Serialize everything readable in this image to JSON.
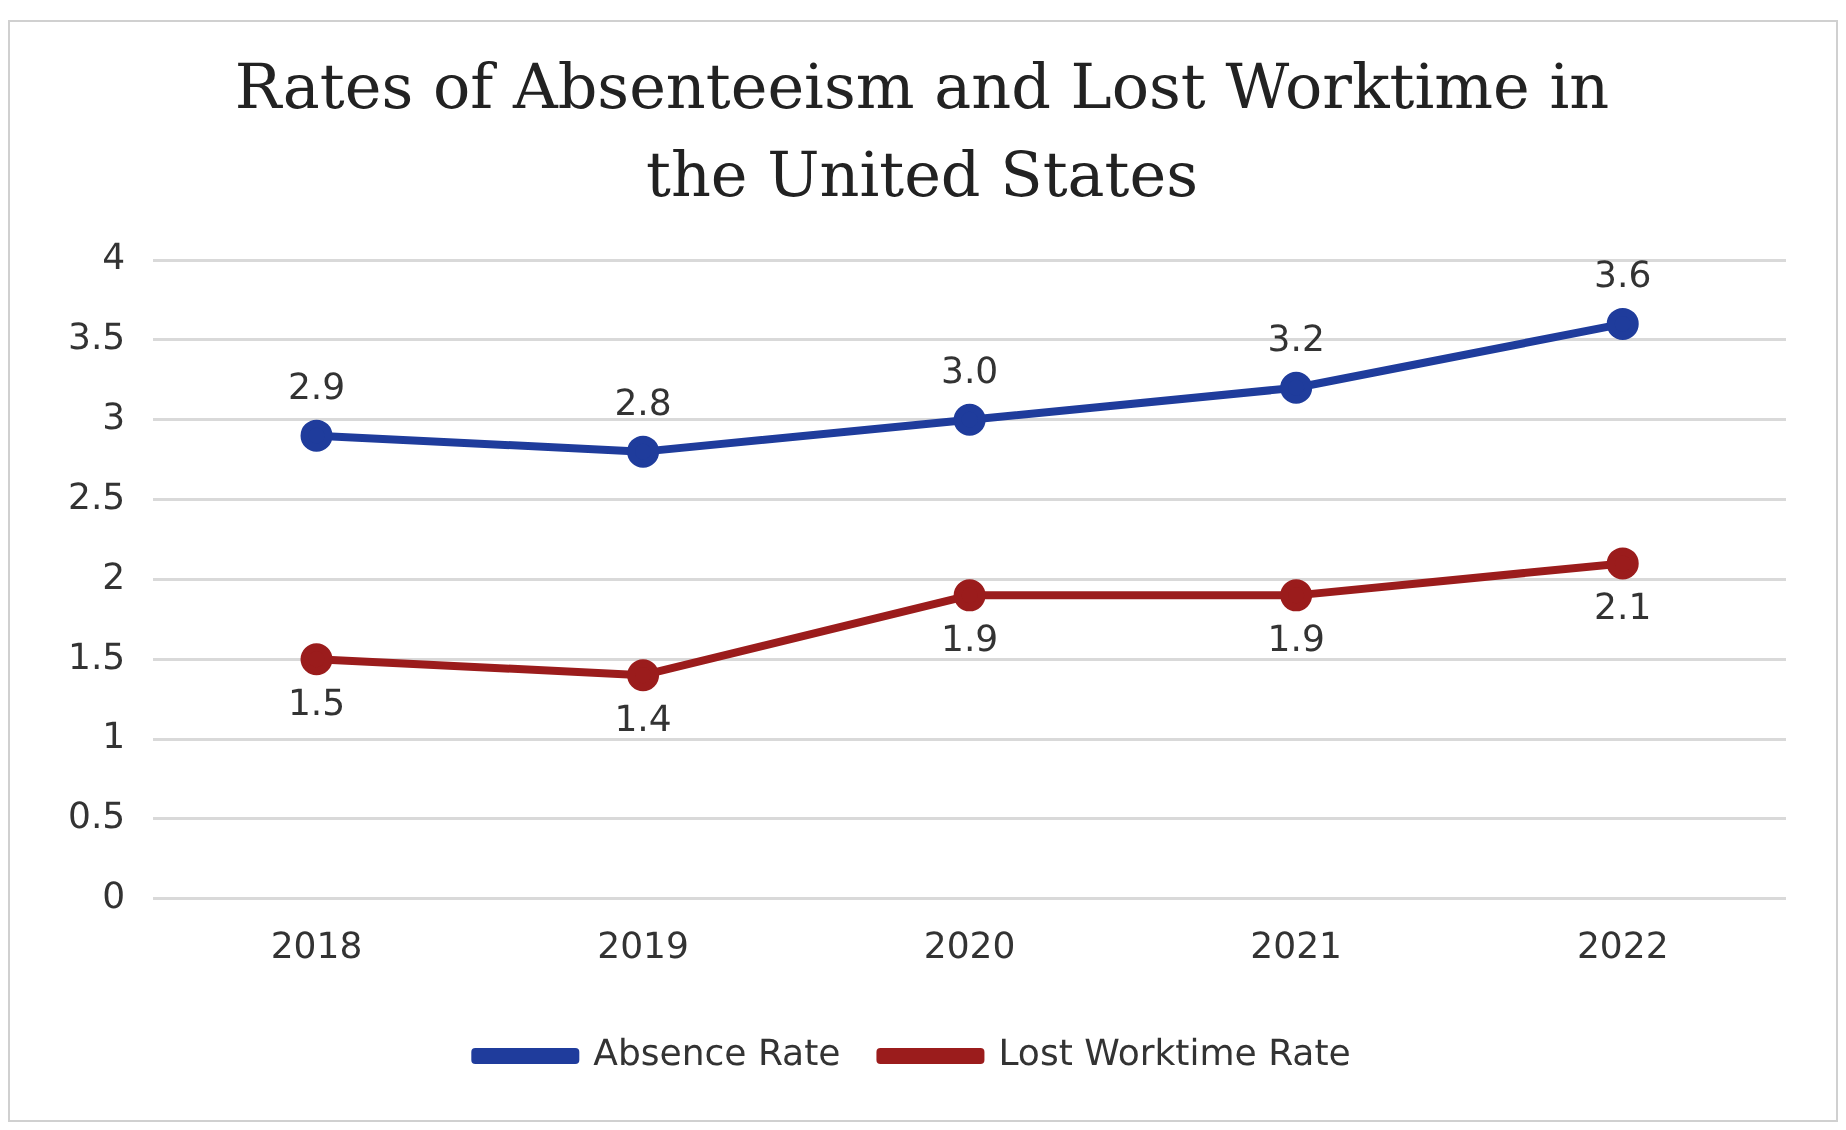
{
  "chart_data": {
    "type": "line",
    "title": "Rates of Absenteeism and Lost Worktime in the United States",
    "categories": [
      "2018",
      "2019",
      "2020",
      "2021",
      "2022"
    ],
    "series": [
      {
        "name": "Absence Rate",
        "color": "#1f3c9c",
        "values": [
          2.9,
          2.8,
          3.0,
          3.2,
          3.6
        ],
        "value_labels": [
          "2.9",
          "2.8",
          "3.0",
          "3.2",
          "3.6"
        ]
      },
      {
        "name": "Lost Worktime Rate",
        "color": "#9b1c1c",
        "values": [
          1.5,
          1.4,
          1.9,
          1.9,
          2.1
        ],
        "value_labels": [
          "1.5",
          "1.4",
          "1.9",
          "1.9",
          "2.1"
        ]
      }
    ],
    "ylim": [
      0,
      4
    ],
    "yticks": [
      0,
      0.5,
      1,
      1.5,
      2,
      2.5,
      3,
      3.5,
      4
    ],
    "grid": "y",
    "legend": "bottom",
    "marker": "circle",
    "line_style": "solid"
  }
}
